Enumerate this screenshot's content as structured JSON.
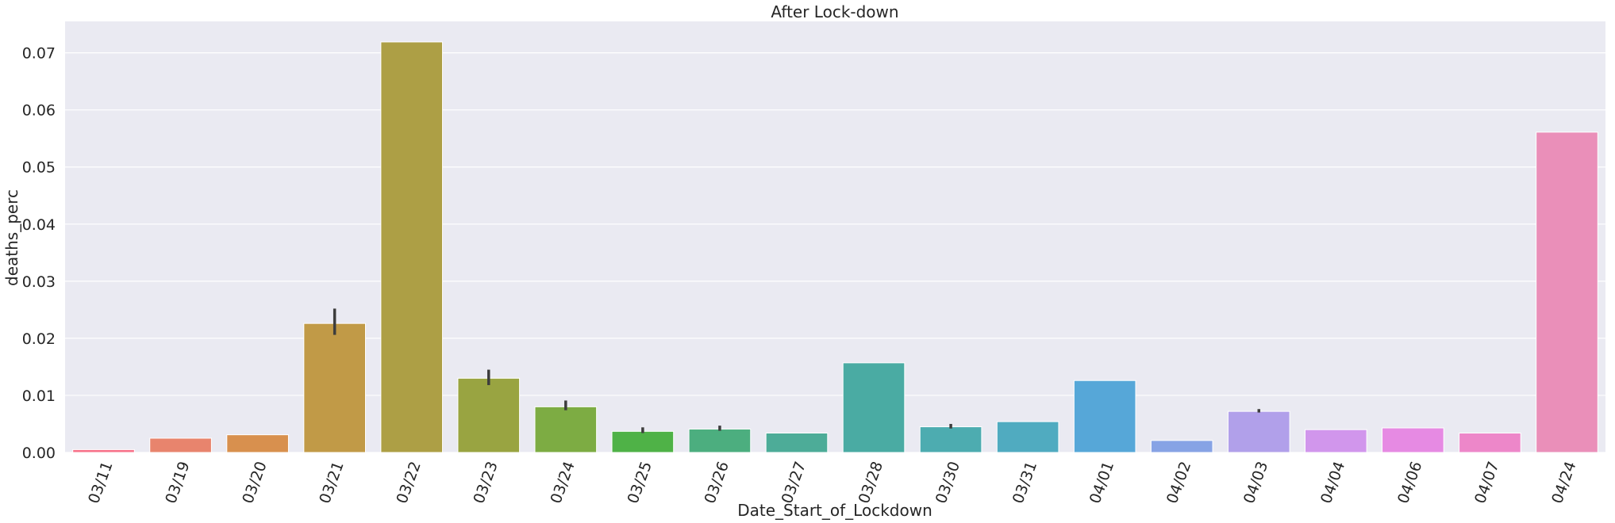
{
  "chart_data": {
    "type": "bar",
    "title": "After Lock-down",
    "xlabel": "Date_Start_of_Lockdown",
    "ylabel": "deaths_perc",
    "ylim": [
      0,
      0.0755
    ],
    "yticks": [
      "0.00",
      "0.01",
      "0.02",
      "0.03",
      "0.04",
      "0.05",
      "0.06",
      "0.07"
    ],
    "grid": true,
    "categories": [
      "03/11",
      "03/19",
      "03/20",
      "03/21",
      "03/22",
      "03/23",
      "03/24",
      "03/25",
      "03/26",
      "03/27",
      "03/28",
      "03/30",
      "03/31",
      "04/01",
      "04/02",
      "04/03",
      "04/04",
      "04/06",
      "04/07",
      "04/24"
    ],
    "values": [
      0.0005,
      0.0025,
      0.0031,
      0.0226,
      0.0719,
      0.013,
      0.008,
      0.0037,
      0.0041,
      0.0034,
      0.0157,
      0.0045,
      0.0054,
      0.0126,
      0.0021,
      0.0072,
      0.004,
      0.0043,
      0.0034,
      0.0561
    ],
    "error_bars": [
      null,
      null,
      null,
      [
        0.0206,
        0.0252
      ],
      null,
      [
        0.0118,
        0.0145
      ],
      [
        0.0074,
        0.0091
      ],
      [
        0.0034,
        0.0044
      ],
      [
        0.0038,
        0.0047
      ],
      null,
      null,
      [
        0.0042,
        0.005
      ],
      null,
      null,
      null,
      [
        0.007,
        0.0076
      ],
      null,
      null,
      null,
      null
    ],
    "colors": [
      "#f77189",
      "#e8846d",
      "#d8904e",
      "#c19a47",
      "#ad9f45",
      "#99a441",
      "#7dac43",
      "#4fb247",
      "#4cae7f",
      "#4dac98",
      "#4aaba3",
      "#4dacb0",
      "#50abc0",
      "#56a7d8",
      "#87a3e5",
      "#b1a0ea",
      "#d196ec",
      "#e68ae3",
      "#ed87c9",
      "#ea8fb9"
    ]
  }
}
